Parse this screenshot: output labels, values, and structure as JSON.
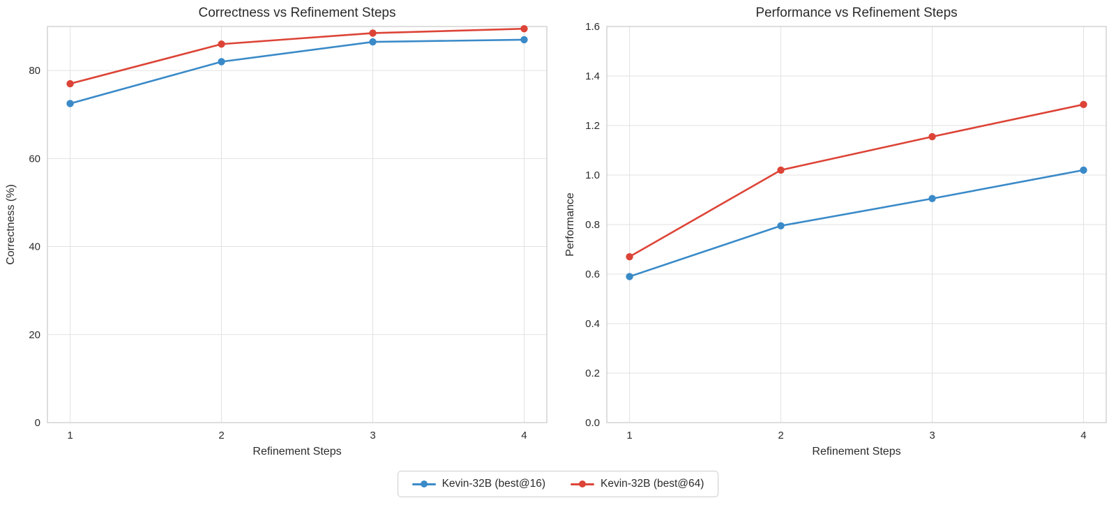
{
  "page": {
    "background": "#ffffff",
    "text_color": "#2b2b2b",
    "grid_color": "#e2e2e2",
    "border_color": "#c9c9c9"
  },
  "legend": {
    "items": [
      {
        "label": "Kevin-32B (best@16)",
        "color": "#3a8ac8"
      },
      {
        "label": "Kevin-32B (best@64)",
        "color": "#dc4437"
      }
    ]
  },
  "chart_data": [
    {
      "type": "line",
      "title": "Correctness vs Refinement Steps",
      "xlabel": "Refinement Steps",
      "ylabel": "Correctness (%)",
      "x": [
        1,
        2,
        3,
        4
      ],
      "series": [
        {
          "name": "Kevin-32B (best@16)",
          "color": "#3a8ac8",
          "values": [
            72.5,
            82,
            86.5,
            87
          ]
        },
        {
          "name": "Kevin-32B (best@64)",
          "color": "#dc4437",
          "values": [
            77,
            86,
            88.5,
            89.5
          ]
        }
      ],
      "xlim": [
        0.85,
        4.15
      ],
      "ylim": [
        0,
        90
      ],
      "xticks": [
        1,
        2,
        3,
        4
      ],
      "xtick_labels": [
        "1",
        "2",
        "3",
        "4"
      ],
      "yticks": [
        0,
        20,
        40,
        60,
        80
      ],
      "ytick_labels": [
        "0",
        "20",
        "40",
        "60",
        "80"
      ],
      "grid": true,
      "legend_position": "shared-bottom-center"
    },
    {
      "type": "line",
      "title": "Performance vs Refinement Steps",
      "xlabel": "Refinement Steps",
      "ylabel": "Performance",
      "x": [
        1,
        2,
        3,
        4
      ],
      "series": [
        {
          "name": "Kevin-32B (best@16)",
          "color": "#3a8ac8",
          "values": [
            0.59,
            0.795,
            0.905,
            1.02
          ]
        },
        {
          "name": "Kevin-32B (best@64)",
          "color": "#dc4437",
          "values": [
            0.67,
            1.02,
            1.155,
            1.285
          ]
        }
      ],
      "xlim": [
        0.85,
        4.15
      ],
      "ylim": [
        0,
        1.6
      ],
      "xticks": [
        1,
        2,
        3,
        4
      ],
      "xtick_labels": [
        "1",
        "2",
        "3",
        "4"
      ],
      "yticks": [
        0,
        0.2,
        0.4,
        0.6,
        0.8,
        1.0,
        1.2,
        1.4,
        1.6
      ],
      "ytick_labels": [
        "0.0",
        "0.2",
        "0.4",
        "0.6",
        "0.8",
        "1.0",
        "1.2",
        "1.4",
        "1.6"
      ],
      "grid": true,
      "legend_position": "shared-bottom-center"
    }
  ]
}
